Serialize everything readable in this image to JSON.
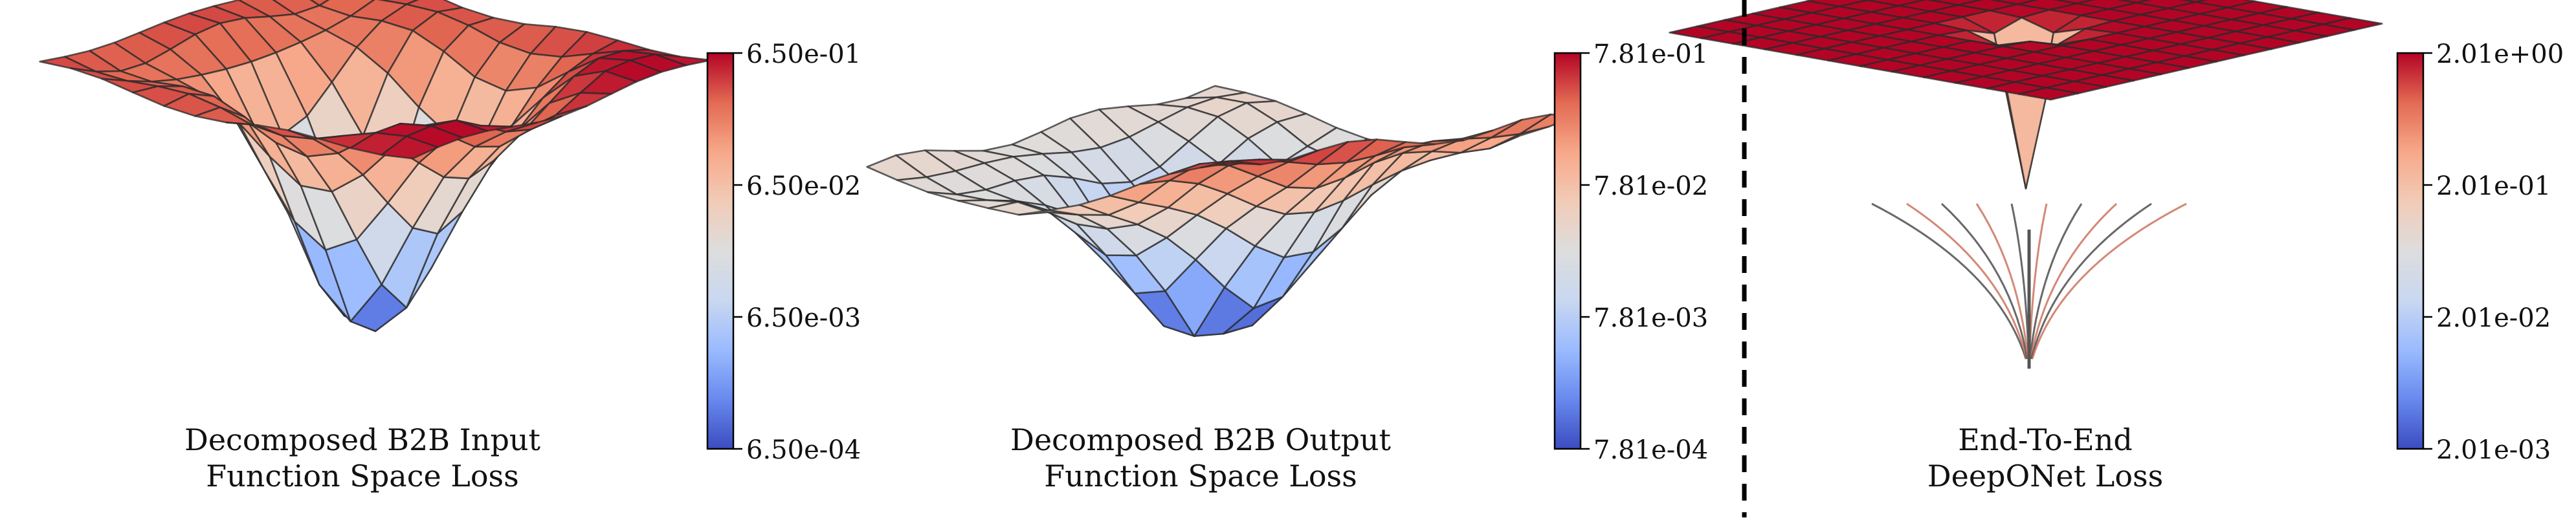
{
  "colormap": {
    "name": "coolwarm",
    "low": "#3b4cc0",
    "mid": "#dddddd",
    "high": "#b40426",
    "stops": [
      "#3b4cc0",
      "#6889ee",
      "#9abbff",
      "#c9d7f0",
      "#dddddd",
      "#f2cbb7",
      "#f7a889",
      "#e36a53",
      "#b40426"
    ]
  },
  "mesh_color": "#2a2a2a",
  "separator": {
    "style": "dashed",
    "color": "#000000"
  },
  "chart_data": [
    {
      "type": "surface",
      "title_lines": [
        "Decomposed B2B Input",
        "Function Space Loss"
      ],
      "colorbar": {
        "scale": "log",
        "ticks": [
          "6.50e-01",
          "6.50e-02",
          "6.50e-03",
          "6.50e-04"
        ],
        "min": 0.00065,
        "max": 0.65
      },
      "grid_lines": 13,
      "surface": "input"
    },
    {
      "type": "surface",
      "title_lines": [
        "Decomposed B2B Output",
        "Function Space Loss"
      ],
      "colorbar": {
        "scale": "log",
        "ticks": [
          "7.81e-01",
          "7.81e-02",
          "7.81e-03",
          "7.81e-04"
        ],
        "min": 0.000781,
        "max": 0.781
      },
      "grid_lines": 13,
      "surface": "output"
    },
    {
      "type": "surface",
      "title_lines": [
        "End-To-End",
        "DeepONet Loss"
      ],
      "colorbar": {
        "scale": "log",
        "ticks": [
          "2.01e+00",
          "2.01e-01",
          "2.01e-02",
          "2.01e-03"
        ],
        "min": 0.00201,
        "max": 2.01
      },
      "grid_lines": 13,
      "surface": "deeponet"
    }
  ]
}
